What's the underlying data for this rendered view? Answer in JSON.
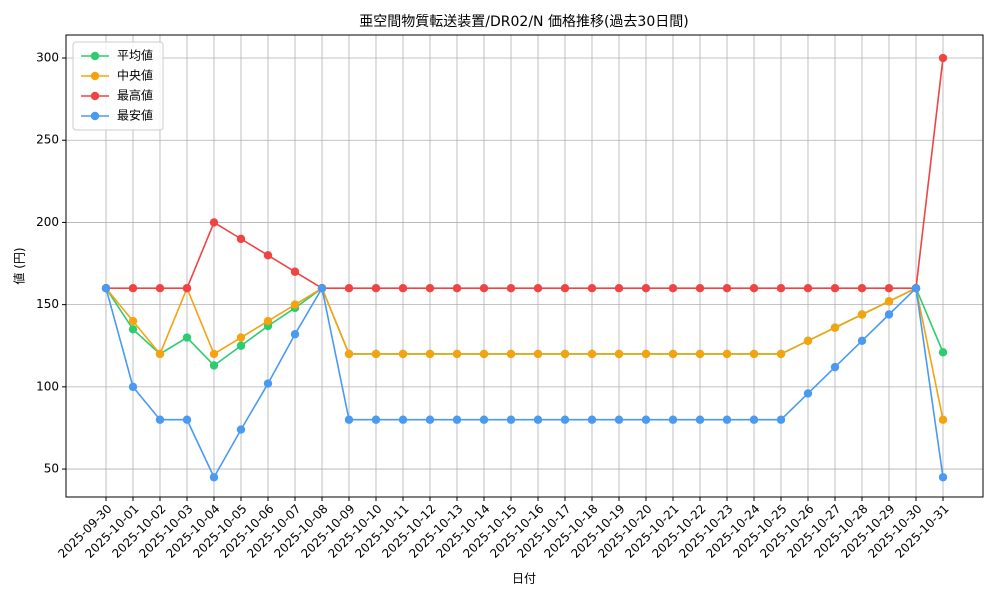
{
  "chart_data": {
    "type": "line",
    "title": "亜空間物質転送装置/DR02/N 価格推移(過去30日間)",
    "x_label": "日付",
    "y_label": "値 (円)",
    "categories": [
      "2025-09-30",
      "2025-10-01",
      "2025-10-02",
      "2025-10-03",
      "2025-10-04",
      "2025-10-05",
      "2025-10-06",
      "2025-10-07",
      "2025-10-08",
      "2025-10-09",
      "2025-10-10",
      "2025-10-11",
      "2025-10-12",
      "2025-10-13",
      "2025-10-14",
      "2025-10-15",
      "2025-10-16",
      "2025-10-17",
      "2025-10-18",
      "2025-10-19",
      "2025-10-20",
      "2025-10-21",
      "2025-10-22",
      "2025-10-23",
      "2025-10-24",
      "2025-10-25",
      "2025-10-26",
      "2025-10-27",
      "2025-10-28",
      "2025-10-29",
      "2025-10-30",
      "2025-10-31"
    ],
    "series": [
      {
        "name": "平均値",
        "color": "#2ecc71",
        "values": [
          160,
          135,
          120,
          130,
          113,
          125,
          137,
          148,
          160,
          120,
          120,
          120,
          120,
          120,
          120,
          120,
          120,
          120,
          120,
          120,
          120,
          120,
          120,
          120,
          120,
          120,
          128,
          136,
          144,
          152,
          160,
          121
        ]
      },
      {
        "name": "中央値",
        "color": "#f5a30f",
        "values": [
          160,
          140,
          120,
          160,
          120,
          130,
          140,
          150,
          160,
          120,
          120,
          120,
          120,
          120,
          120,
          120,
          120,
          120,
          120,
          120,
          120,
          120,
          120,
          120,
          120,
          120,
          128,
          136,
          144,
          152,
          160,
          80
        ]
      },
      {
        "name": "最高値",
        "color": "#ef4444",
        "values": [
          160,
          160,
          160,
          160,
          200,
          190,
          180,
          170,
          160,
          160,
          160,
          160,
          160,
          160,
          160,
          160,
          160,
          160,
          160,
          160,
          160,
          160,
          160,
          160,
          160,
          160,
          160,
          160,
          160,
          160,
          160,
          300
        ]
      },
      {
        "name": "最安値",
        "color": "#4a9af2",
        "values": [
          160,
          100,
          80,
          80,
          45,
          74,
          102,
          132,
          160,
          80,
          80,
          80,
          80,
          80,
          80,
          80,
          80,
          80,
          80,
          80,
          80,
          80,
          80,
          80,
          80,
          80,
          96,
          112,
          128,
          144,
          160,
          45
        ]
      }
    ],
    "ylim": [
      33,
      314
    ],
    "yticks": [
      50,
      100,
      150,
      200,
      250,
      300
    ],
    "grid": true,
    "legend": "upper left"
  }
}
